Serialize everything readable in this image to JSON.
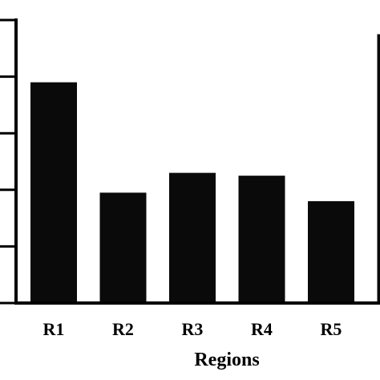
{
  "chart_data": {
    "type": "bar",
    "title": "",
    "xlabel": "Regions",
    "ylabel": "",
    "categories": [
      "R1",
      "R2",
      "R3",
      "R4",
      "R5",
      ""
    ],
    "values": [
      3.9,
      1.95,
      2.3,
      2.25,
      1.8,
      4.75
    ],
    "ylim": [
      0,
      5
    ],
    "yticks": [
      0,
      1,
      2,
      3,
      4,
      5
    ],
    "grid": false,
    "legend": "none",
    "colors": {
      "bar": "#0a0a0a",
      "axis": "#000000",
      "background": "#ffffff"
    }
  }
}
